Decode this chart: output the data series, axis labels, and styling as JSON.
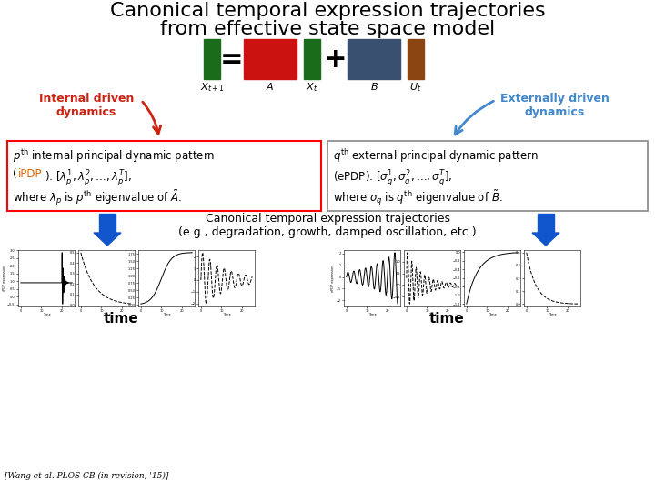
{
  "title_line1": "Canonical temporal expression trajectories",
  "title_line2": "from effective state space model",
  "bg_color": "#ffffff",
  "title_fontsize": 16,
  "block_colors": {
    "dark_green": "#1a6b1a",
    "red": "#cc1111",
    "blue_gray": "#3a5070",
    "brown": "#8B4513"
  },
  "canonical_text": "Canonical temporal expression trajectories\n(e.g., degradation, growth, damped oscillation, etc.)",
  "ipdp_label": "iPDP expression",
  "epdp_label": "ePDP expression",
  "time_label": "time",
  "citation": "[Wang et al. PLOS CB (in revision, '15)]",
  "arrow_blue": "#1155cc",
  "arrow_red": "#cc2211",
  "internal_label_color": "#cc2211",
  "external_label_color": "#4488cc",
  "internal_label": "Internal driven\ndynamics",
  "external_label": "Externally driven\ndynamics"
}
